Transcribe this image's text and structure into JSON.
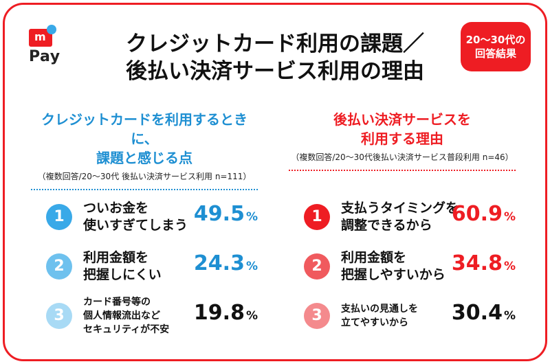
{
  "brand": {
    "logo_mark": "m",
    "logo_text": "Pay"
  },
  "title": {
    "line1": "クレジットカード利用の課題／",
    "line2": "後払い決済サービス利用の理由"
  },
  "badge": {
    "line1": "20～30代の",
    "line2": "回答結果"
  },
  "left": {
    "heading_line1": "クレジットカードを利用するときに、",
    "heading_line2": "課題と感じる点",
    "note": "（複数回答/20～30代 後払い決済サービス利用 n=111）",
    "items": [
      {
        "rank": "1",
        "lines": [
          "ついお金を",
          "使いすぎてしまう"
        ],
        "value": "49.5",
        "unit": "%"
      },
      {
        "rank": "2",
        "lines": [
          "利用金額を",
          "把握しにくい"
        ],
        "value": "24.3",
        "unit": "%"
      },
      {
        "rank": "3",
        "lines": [
          "カード番号等の",
          "個人情報流出など",
          "セキュリティが不安"
        ],
        "value": "19.8",
        "unit": "%"
      }
    ]
  },
  "right": {
    "heading_line1": "後払い決済サービスを",
    "heading_line2": "利用する理由",
    "note": "（複数回答/20～30代後払い決済サービス普段利用 n=46）",
    "items": [
      {
        "rank": "1",
        "lines": [
          "支払うタイミングを",
          "調整できるから"
        ],
        "value": "60.9",
        "unit": "%"
      },
      {
        "rank": "2",
        "lines": [
          "利用金額を",
          "把握しやすいから"
        ],
        "value": "34.8",
        "unit": "%"
      },
      {
        "rank": "3",
        "lines": [
          "支払いの見通しを",
          "立てやすいから"
        ],
        "value": "30.4",
        "unit": "%"
      }
    ]
  },
  "colors": {
    "brand_red": "#ee1d23",
    "blue": "#1e8fd2",
    "rank_left": [
      "#39a9e8",
      "#6ec1ee",
      "#a8daf5"
    ],
    "rank_right": [
      "#ee1d23",
      "#f05a5e",
      "#f48a8d"
    ]
  }
}
